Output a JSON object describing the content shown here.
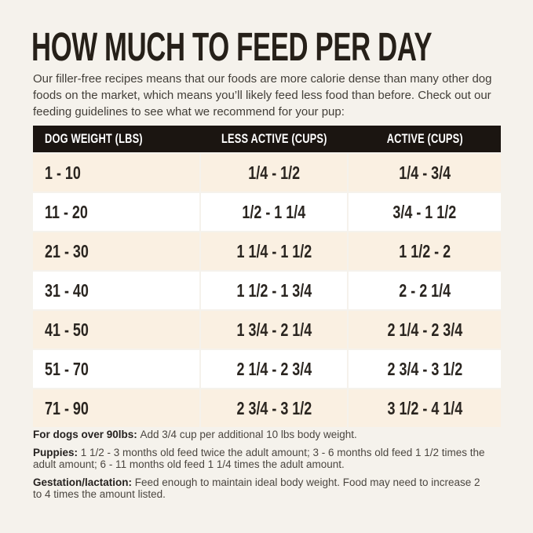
{
  "page": {
    "title": "HOW MUCH TO FEED PER DAY"
  },
  "intro_lines": [
    "Our filler-free recipes means that our foods are more calorie dense than many other dog",
    "foods on the market, which means you’ll likely feed less food than before. Check out our",
    "feeding guidelines to see what we recommend for your pup:"
  ],
  "table": {
    "headers": [
      "DOG WEIGHT (LBS)",
      "LESS ACTIVE (CUPS)",
      "ACTIVE (CUPS)"
    ],
    "rows": [
      [
        "1 - 10",
        "1/4 - 1/2",
        "1/4 - 3/4"
      ],
      [
        "11 - 20",
        "1/2 - 1 1/4",
        "3/4 - 1 1/2"
      ],
      [
        "21 - 30",
        "1 1/4 - 1 1/2",
        "1 1/2 - 2"
      ],
      [
        "31 - 40",
        "1 1/2 - 1 3/4",
        "2 - 2 1/4"
      ],
      [
        "41 - 50",
        "1 3/4 - 2 1/4",
        "2 1/4 - 2 3/4"
      ],
      [
        "51 - 70",
        "2 1/4 - 2 3/4",
        "2 3/4 - 3 1/2"
      ],
      [
        "71 - 90",
        "2 3/4 - 3 1/2",
        "3 1/2 - 4 1/4"
      ]
    ]
  },
  "notes": [
    {
      "label": "For dogs over 90lbs:",
      "lines": [
        "Add 3/4 cup per additional 10 lbs body weight."
      ]
    },
    {
      "label": "Puppies:",
      "lines": [
        "1 1/2 - 3 months old feed twice the adult amount; 3 - 6 months old feed 1 1/2 times the",
        "adult amount; 6 - 11 months old feed 1 1/4 times the adult amount."
      ]
    },
    {
      "label": "Gestation/lactation:",
      "lines": [
        "Feed enough to maintain ideal body weight. Food may need to increase 2",
        "to 4 times the amount listed."
      ]
    }
  ],
  "colors": {
    "page_bg": "#f5f2ec",
    "header_bg": "#1b1511",
    "header_text": "#ffffff",
    "row_cream": "#faf0e2",
    "row_white": "#ffffff",
    "title_text": "#262019",
    "body_text": "#423e38",
    "cell_text": "#2a2520"
  }
}
